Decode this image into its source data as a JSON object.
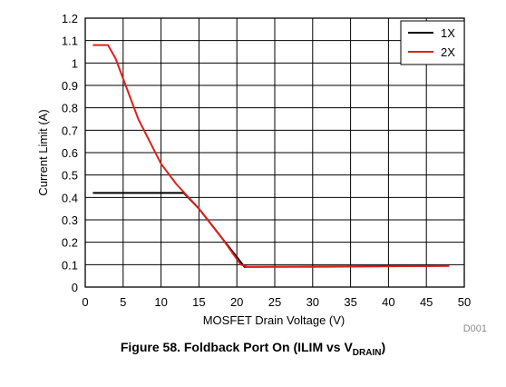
{
  "chart_data": {
    "type": "line",
    "xlabel": "MOSFET Drain Voltage (V)",
    "ylabel": "Current Limit (A)",
    "xlim": [
      0,
      50
    ],
    "ylim": [
      0,
      1.2
    ],
    "xticks": [
      "0",
      "5",
      "10",
      "15",
      "20",
      "25",
      "30",
      "35",
      "40",
      "45",
      "50"
    ],
    "yticks": [
      "0",
      "0.1",
      "0.2",
      "0.3",
      "0.4",
      "0.5",
      "0.6",
      "0.7",
      "0.8",
      "0.9",
      "1",
      "1.1",
      "1.2"
    ],
    "grid": true,
    "legend_position": "top-right",
    "series": [
      {
        "name": "1X",
        "color": "#000000",
        "x": [
          1,
          5,
          10,
          13,
          15,
          18,
          21,
          48
        ],
        "y": [
          0.42,
          0.42,
          0.42,
          0.42,
          0.35,
          0.22,
          0.09,
          0.095
        ]
      },
      {
        "name": "2X",
        "color": "#e0201b",
        "x": [
          1,
          3,
          4,
          5,
          7,
          10,
          12,
          15,
          18,
          20.5,
          21.5,
          30,
          48
        ],
        "y": [
          1.08,
          1.08,
          1.02,
          0.93,
          0.75,
          0.55,
          0.46,
          0.35,
          0.22,
          0.1,
          0.09,
          0.09,
          0.095
        ]
      }
    ],
    "figure_id": "D001"
  },
  "caption": {
    "main": "Figure 58.  Foldback Port On (ILIM vs V",
    "subscript": "DRAIN",
    "suffix": ")"
  }
}
